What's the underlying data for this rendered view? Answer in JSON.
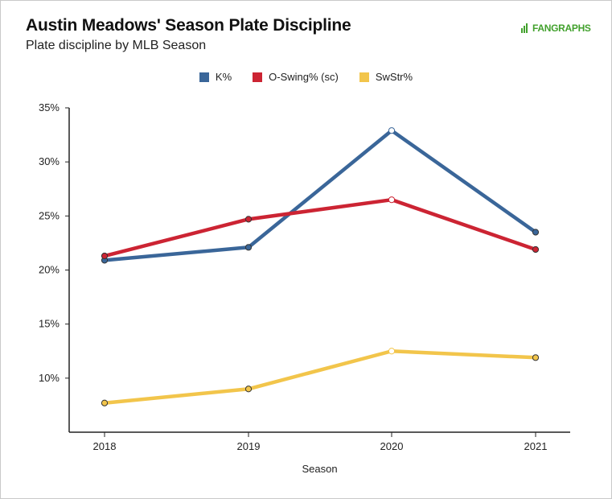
{
  "header": {
    "title": "Austin Meadows' Season Plate Discipline",
    "subtitle": "Plate discipline by MLB Season",
    "logo_text": "FANGRAPHS"
  },
  "chart_data": {
    "type": "line",
    "title": "Austin Meadows' Season Plate Discipline",
    "subtitle": "Plate discipline by MLB Season",
    "xlabel": "Season",
    "ylabel": "",
    "categories": [
      "2018",
      "2019",
      "2020",
      "2021"
    ],
    "y_ticks": [
      "10%",
      "15%",
      "20%",
      "25%",
      "30%",
      "35%"
    ],
    "ylim": [
      5,
      35
    ],
    "legend_position": "top-center",
    "grid": false,
    "series": [
      {
        "name": "K%",
        "color": "#3a6699",
        "values": [
          20.9,
          22.1,
          32.9,
          23.5
        ]
      },
      {
        "name": "O-Swing% (sc)",
        "color": "#cc2433",
        "values": [
          21.3,
          24.7,
          26.5,
          21.9
        ]
      },
      {
        "name": "SwStr%",
        "color": "#f2c54b",
        "values": [
          7.7,
          9.0,
          12.5,
          11.9
        ]
      }
    ]
  }
}
